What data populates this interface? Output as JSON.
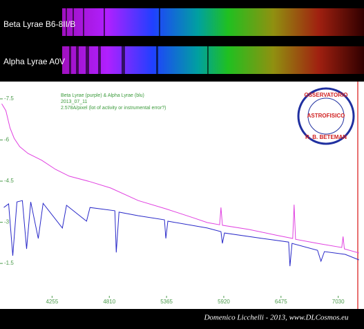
{
  "chart_data": {
    "type": "line",
    "labels": [
      "Beta Lyrae B6-8II/B",
      "Alpha Lyrae A0V"
    ],
    "legend": [
      "Beta Lyrae (purple) & Alpha Lyrae (blu)",
      "2013_07_11",
      "2.578A/pixel (lot of activity or instrumental error?)"
    ],
    "logo": [
      "OSSERVATORIO",
      "ASTROFISICO",
      "R. B. BETEMAN"
    ],
    "credit": "Domenico Licchelli - 2013, www.DLCosmos.eu",
    "xlim": [
      3750,
      7280
    ],
    "xticks": [
      4255,
      4810,
      5365,
      5920,
      6475,
      7030
    ],
    "ylim": [
      -0.52,
      -8.13
    ],
    "yticks": [
      -7.5,
      -6,
      -4.5,
      -3,
      -1.5
    ],
    "series": [
      {
        "color": "#e040e0",
        "x": [
          3767,
          3807,
          3847,
          3887,
          3941,
          4021,
          4155,
          4288,
          4422,
          4623,
          4823,
          5091,
          5358,
          5626,
          5760,
          5880,
          5893,
          5907,
          6161,
          6428,
          6589,
          6602,
          6616,
          6830,
          7064,
          7077,
          7090,
          7231
        ],
        "values": [
          -7.32,
          -7.07,
          -6.44,
          -6.06,
          -5.76,
          -5.51,
          -5.26,
          -4.93,
          -4.68,
          -4.48,
          -4.25,
          -3.79,
          -3.49,
          -3.16,
          -2.99,
          -2.91,
          -3.54,
          -2.89,
          -2.74,
          -2.53,
          -2.41,
          -3.64,
          -2.38,
          -2.23,
          -2.08,
          -2.48,
          -2.03,
          -1.88
        ]
      },
      {
        "color": "#2828c8",
        "x": [
          3787,
          3834,
          3874,
          3914,
          3967,
          4008,
          4048,
          4121,
          4168,
          4355,
          4395,
          4589,
          4623,
          4864,
          4877,
          4904,
          5091,
          5345,
          5358,
          5378,
          5760,
          5893,
          5907,
          5927,
          6295,
          6549,
          6562,
          6582,
          6829,
          6863,
          6896,
          7097,
          7231
        ],
        "values": [
          -3.54,
          -3.67,
          -1.78,
          -3.74,
          -3.79,
          -2.03,
          -3.74,
          -2.41,
          -3.69,
          -2.79,
          -3.62,
          -3.04,
          -3.54,
          -3.42,
          -1.9,
          -3.37,
          -3.24,
          -3.09,
          -2.41,
          -3.04,
          -2.79,
          -2.66,
          -2.23,
          -2.61,
          -2.41,
          -2.28,
          -1.4,
          -2.23,
          -1.98,
          -1.58,
          -1.93,
          -1.83,
          -1.63
        ]
      }
    ]
  }
}
